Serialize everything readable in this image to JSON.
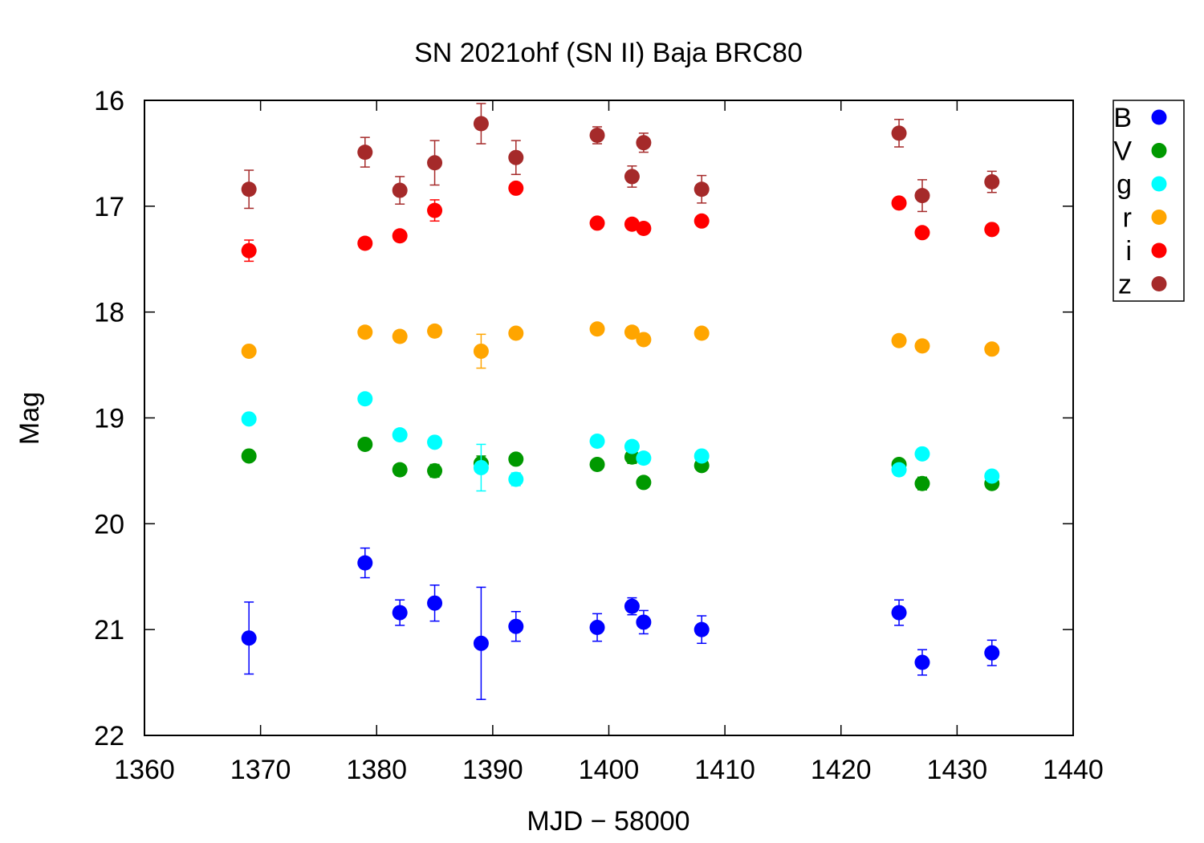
{
  "chart_data": {
    "type": "scatter",
    "title": "SN 2021ohf (SN II) Baja BRC80",
    "xlabel": "MJD − 58000",
    "ylabel": "Mag",
    "xlim": [
      1360,
      1440
    ],
    "ylim": [
      22,
      16
    ],
    "y_inverted": true,
    "grid": false,
    "legend_position": "outside-top-right",
    "x_ticks": [
      1360,
      1370,
      1380,
      1390,
      1400,
      1410,
      1420,
      1430,
      1440
    ],
    "x_tick_labels": [
      "1360",
      "1370",
      "1380",
      "1390",
      "1400",
      "1410",
      "1420",
      "1430",
      "1440"
    ],
    "y_ticks": [
      16,
      17,
      18,
      19,
      20,
      21,
      22
    ],
    "y_tick_labels": [
      "16",
      "17",
      "18",
      "19",
      "20",
      "21",
      "22"
    ],
    "series": [
      {
        "name": "B",
        "color": "#0000ff",
        "points": [
          {
            "x": 1369,
            "y": 21.08,
            "err": 0.34
          },
          {
            "x": 1379,
            "y": 20.37,
            "err": 0.14
          },
          {
            "x": 1382,
            "y": 20.84,
            "err": 0.12
          },
          {
            "x": 1385,
            "y": 20.75,
            "err": 0.17
          },
          {
            "x": 1389,
            "y": 21.13,
            "err": 0.53
          },
          {
            "x": 1392,
            "y": 20.97,
            "err": 0.14
          },
          {
            "x": 1399,
            "y": 20.98,
            "err": 0.13
          },
          {
            "x": 1402,
            "y": 20.78,
            "err": 0.08
          },
          {
            "x": 1403,
            "y": 20.93,
            "err": 0.11
          },
          {
            "x": 1408,
            "y": 21.0,
            "err": 0.13
          },
          {
            "x": 1425,
            "y": 20.84,
            "err": 0.12
          },
          {
            "x": 1427,
            "y": 21.31,
            "err": 0.12
          },
          {
            "x": 1433,
            "y": 21.22,
            "err": 0.12
          }
        ]
      },
      {
        "name": "V",
        "color": "#009900",
        "points": [
          {
            "x": 1369,
            "y": 19.36,
            "err": 0.03
          },
          {
            "x": 1379,
            "y": 19.25,
            "err": 0.03
          },
          {
            "x": 1382,
            "y": 19.49,
            "err": 0.04
          },
          {
            "x": 1385,
            "y": 19.5,
            "err": 0.06
          },
          {
            "x": 1389,
            "y": 19.43,
            "err": 0.07
          },
          {
            "x": 1392,
            "y": 19.39,
            "err": 0.05
          },
          {
            "x": 1399,
            "y": 19.44,
            "err": 0.03
          },
          {
            "x": 1402,
            "y": 19.37,
            "err": 0.06
          },
          {
            "x": 1403,
            "y": 19.61,
            "err": 0.03
          },
          {
            "x": 1408,
            "y": 19.45,
            "err": 0.03
          },
          {
            "x": 1425,
            "y": 19.44,
            "err": 0.05
          },
          {
            "x": 1427,
            "y": 19.62,
            "err": 0.06
          },
          {
            "x": 1433,
            "y": 19.62,
            "err": 0.03
          }
        ]
      },
      {
        "name": "g",
        "color": "#00ffff",
        "points": [
          {
            "x": 1369,
            "y": 19.01,
            "err": 0.02
          },
          {
            "x": 1379,
            "y": 18.82,
            "err": 0.02
          },
          {
            "x": 1382,
            "y": 19.16,
            "err": 0.02
          },
          {
            "x": 1385,
            "y": 19.23,
            "err": 0.02
          },
          {
            "x": 1389,
            "y": 19.47,
            "err": 0.22
          },
          {
            "x": 1392,
            "y": 19.58,
            "err": 0.06
          },
          {
            "x": 1399,
            "y": 19.22,
            "err": 0.02
          },
          {
            "x": 1402,
            "y": 19.27,
            "err": 0.02
          },
          {
            "x": 1403,
            "y": 19.38,
            "err": 0.02
          },
          {
            "x": 1408,
            "y": 19.36,
            "err": 0.02
          },
          {
            "x": 1425,
            "y": 19.49,
            "err": 0.05
          },
          {
            "x": 1427,
            "y": 19.34,
            "err": 0.02
          },
          {
            "x": 1433,
            "y": 19.55,
            "err": 0.02
          }
        ]
      },
      {
        "name": "r",
        "color": "#ffa500",
        "points": [
          {
            "x": 1369,
            "y": 18.37,
            "err": 0.02
          },
          {
            "x": 1379,
            "y": 18.19,
            "err": 0.02
          },
          {
            "x": 1382,
            "y": 18.23,
            "err": 0.02
          },
          {
            "x": 1385,
            "y": 18.18,
            "err": 0.02
          },
          {
            "x": 1389,
            "y": 18.37,
            "err": 0.16
          },
          {
            "x": 1392,
            "y": 18.2,
            "err": 0.02
          },
          {
            "x": 1399,
            "y": 18.16,
            "err": 0.02
          },
          {
            "x": 1402,
            "y": 18.19,
            "err": 0.02
          },
          {
            "x": 1403,
            "y": 18.26,
            "err": 0.02
          },
          {
            "x": 1408,
            "y": 18.2,
            "err": 0.02
          },
          {
            "x": 1425,
            "y": 18.27,
            "err": 0.02
          },
          {
            "x": 1427,
            "y": 18.32,
            "err": 0.02
          },
          {
            "x": 1433,
            "y": 18.35,
            "err": 0.02
          }
        ]
      },
      {
        "name": "i",
        "color": "#ff0000",
        "points": [
          {
            "x": 1369,
            "y": 17.42,
            "err": 0.1
          },
          {
            "x": 1379,
            "y": 17.35,
            "err": 0.03
          },
          {
            "x": 1382,
            "y": 17.28,
            "err": 0.03
          },
          {
            "x": 1385,
            "y": 17.04,
            "err": 0.1
          },
          {
            "x": 1392,
            "y": 16.83,
            "err": 0.05
          },
          {
            "x": 1399,
            "y": 17.16,
            "err": 0.03
          },
          {
            "x": 1402,
            "y": 17.17,
            "err": 0.03
          },
          {
            "x": 1403,
            "y": 17.21,
            "err": 0.03
          },
          {
            "x": 1408,
            "y": 17.14,
            "err": 0.03
          },
          {
            "x": 1425,
            "y": 16.97,
            "err": 0.03
          },
          {
            "x": 1427,
            "y": 17.25,
            "err": 0.03
          },
          {
            "x": 1433,
            "y": 17.22,
            "err": 0.03
          }
        ]
      },
      {
        "name": "z",
        "color": "#a52a2a",
        "points": [
          {
            "x": 1369,
            "y": 16.84,
            "err": 0.18
          },
          {
            "x": 1379,
            "y": 16.49,
            "err": 0.14
          },
          {
            "x": 1382,
            "y": 16.85,
            "err": 0.13
          },
          {
            "x": 1385,
            "y": 16.59,
            "err": 0.21
          },
          {
            "x": 1389,
            "y": 16.22,
            "err": 0.19
          },
          {
            "x": 1392,
            "y": 16.54,
            "err": 0.16
          },
          {
            "x": 1399,
            "y": 16.33,
            "err": 0.08
          },
          {
            "x": 1402,
            "y": 16.72,
            "err": 0.1
          },
          {
            "x": 1403,
            "y": 16.4,
            "err": 0.09
          },
          {
            "x": 1408,
            "y": 16.84,
            "err": 0.13
          },
          {
            "x": 1425,
            "y": 16.31,
            "err": 0.13
          },
          {
            "x": 1427,
            "y": 16.9,
            "err": 0.15
          },
          {
            "x": 1433,
            "y": 16.77,
            "err": 0.1
          }
        ]
      }
    ]
  }
}
